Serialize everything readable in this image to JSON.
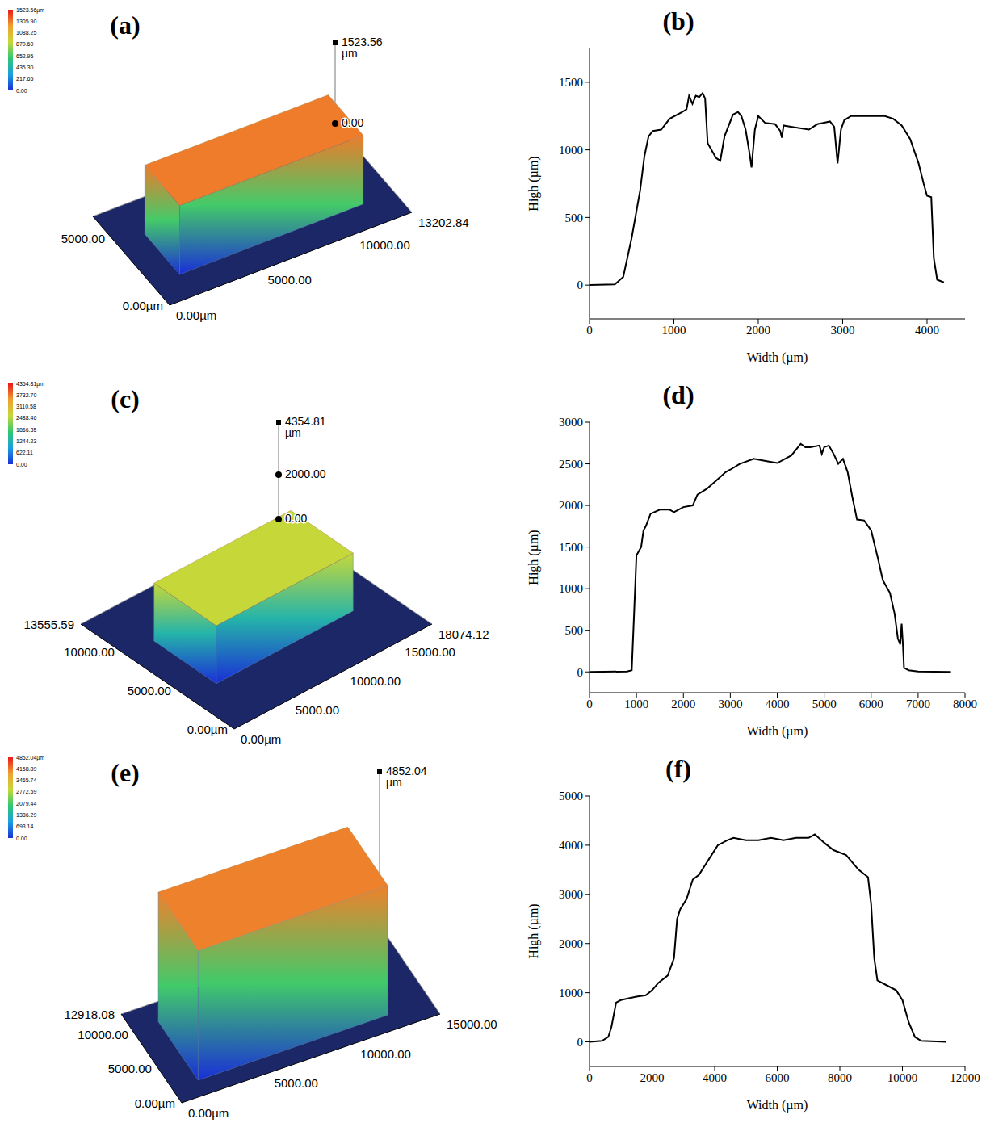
{
  "chart_data": [
    {
      "type": "surface",
      "title": "(a)",
      "xlim": [
        0,
        13202.84
      ],
      "xticks": [
        {
          "value": 0,
          "label": "0.00µm"
        },
        {
          "value": 5000,
          "label": "5000.00"
        },
        {
          "value": 10000,
          "label": "10000.00"
        },
        {
          "value": 13202.84,
          "label": "13202.84"
        }
      ],
      "ylim": [
        0,
        6600
      ],
      "yticks": [
        {
          "value": 0,
          "label": "0.00µm"
        },
        {
          "value": 5000,
          "label": "5000.00"
        }
      ],
      "zlim": [
        0,
        1523.56
      ],
      "zticks": [
        {
          "value": 0,
          "label": "0.00"
        },
        {
          "value": 1523.56,
          "label": "1523.56 µm"
        }
      ],
      "color_bar": {
        "range": [
          0,
          1523.56
        ],
        "ticks": [
          {
            "value": 1523.56,
            "label": "1523.56µm"
          },
          {
            "value": 1305.9,
            "label": "1305.90"
          },
          {
            "value": 1088.25,
            "label": "1088.25"
          },
          {
            "value": 870.6,
            "label": "870.60"
          },
          {
            "value": 652.95,
            "label": "652.95"
          },
          {
            "value": 435.3,
            "label": "435.30"
          },
          {
            "value": 217.65,
            "label": "217.65"
          },
          {
            "value": 0,
            "label": "0.00"
          }
        ]
      },
      "sample_x": [
        1500,
        11500
      ],
      "sample_y": [
        1500,
        4500
      ],
      "sample_height": 1300
    },
    {
      "type": "line",
      "title": "(b)",
      "x_label": "Width (µm)",
      "y_label": "High (µm)",
      "color": "#000000",
      "grid": false,
      "xlim": [
        0,
        4450
      ],
      "xticks": [
        0,
        1000,
        2000,
        3000,
        4000
      ],
      "ylim": [
        -250,
        1750
      ],
      "yticks": [
        0,
        500,
        1000,
        1500
      ],
      "x": [
        0,
        300,
        400,
        500,
        600,
        650,
        700,
        750,
        850,
        950,
        1100,
        1150,
        1180,
        1220,
        1260,
        1300,
        1340,
        1370,
        1400,
        1500,
        1550,
        1600,
        1700,
        1760,
        1800,
        1850,
        1900,
        1920,
        1960,
        2000,
        2080,
        2200,
        2260,
        2280,
        2300,
        2400,
        2600,
        2700,
        2850,
        2900,
        2940,
        2980,
        3020,
        3100,
        3200,
        3500,
        3600,
        3700,
        3800,
        3900,
        3960,
        4000,
        4050,
        4080,
        4120,
        4200
      ],
      "values": [
        0,
        5,
        60,
        350,
        700,
        950,
        1100,
        1140,
        1150,
        1230,
        1280,
        1300,
        1400,
        1340,
        1400,
        1390,
        1420,
        1380,
        1050,
        940,
        920,
        1100,
        1260,
        1280,
        1250,
        1150,
        960,
        870,
        1150,
        1250,
        1200,
        1190,
        1140,
        1090,
        1180,
        1170,
        1150,
        1190,
        1210,
        1170,
        900,
        1150,
        1220,
        1250,
        1250,
        1250,
        1230,
        1180,
        1080,
        900,
        750,
        660,
        650,
        200,
        40,
        20
      ]
    },
    {
      "type": "surface",
      "title": "(c)",
      "xlim": [
        0,
        18074.12
      ],
      "xticks": [
        {
          "value": 0,
          "label": "0.00µm"
        },
        {
          "value": 5000,
          "label": "5000.00"
        },
        {
          "value": 10000,
          "label": "10000.00"
        },
        {
          "value": 15000,
          "label": "15000.00"
        },
        {
          "value": 18074.12,
          "label": "18074.12"
        }
      ],
      "ylim": [
        0,
        13555.59
      ],
      "yticks": [
        {
          "value": 0,
          "label": "0.00µm"
        },
        {
          "value": 5000,
          "label": "5000.00"
        },
        {
          "value": 10000,
          "label": "10000.00"
        },
        {
          "value": 13555.59,
          "label": "13555.59"
        }
      ],
      "zlim": [
        0,
        4354.81
      ],
      "zticks": [
        {
          "value": 0,
          "label": "0.00"
        },
        {
          "value": 2000,
          "label": "2000.00"
        },
        {
          "value": 4354.81,
          "label": "4354.81 µm"
        }
      ],
      "color_bar": {
        "range": [
          0,
          4354.81
        ],
        "ticks": [
          {
            "value": 4354.81,
            "label": "4354.81µm"
          },
          {
            "value": 3732.7,
            "label": "3732.70"
          },
          {
            "value": 3110.58,
            "label": "3110.58"
          },
          {
            "value": 2488.46,
            "label": "2488.46"
          },
          {
            "value": 1866.35,
            "label": "1866.35"
          },
          {
            "value": 1244.23,
            "label": "1244.23"
          },
          {
            "value": 622.11,
            "label": "622.11"
          },
          {
            "value": 0,
            "label": "0.00"
          }
        ]
      },
      "sample_x": [
        2500,
        15000
      ],
      "sample_y": [
        4000,
        9500
      ],
      "sample_height": 2600
    },
    {
      "type": "line",
      "title": "(d)",
      "x_label": "Width (µm)",
      "y_label": "High (µm)",
      "color": "#000000",
      "grid": false,
      "xlim": [
        0,
        8000
      ],
      "xticks": [
        0,
        1000,
        2000,
        3000,
        4000,
        5000,
        6000,
        7000,
        8000
      ],
      "ylim": [
        -250,
        3000
      ],
      "yticks": [
        0,
        500,
        1000,
        1500,
        2000,
        2500,
        3000
      ],
      "x": [
        0,
        800,
        900,
        950,
        1000,
        1100,
        1150,
        1200,
        1300,
        1500,
        1700,
        1800,
        2000,
        2200,
        2300,
        2500,
        2700,
        2900,
        3000,
        3200,
        3500,
        3800,
        4000,
        4300,
        4500,
        4600,
        4700,
        4900,
        4950,
        5000,
        5100,
        5200,
        5300,
        5400,
        5500,
        5600,
        5700,
        5850,
        6000,
        6150,
        6250,
        6400,
        6500,
        6570,
        6620,
        6650,
        6680,
        6700,
        6800,
        7000,
        7700
      ],
      "values": [
        0,
        5,
        20,
        700,
        1400,
        1500,
        1700,
        1750,
        1900,
        1950,
        1950,
        1920,
        1980,
        2000,
        2130,
        2200,
        2300,
        2400,
        2430,
        2500,
        2560,
        2530,
        2510,
        2600,
        2740,
        2700,
        2700,
        2720,
        2620,
        2700,
        2720,
        2620,
        2500,
        2560,
        2400,
        2100,
        1830,
        1820,
        1700,
        1350,
        1100,
        950,
        700,
        400,
        330,
        580,
        300,
        50,
        20,
        5,
        0
      ]
    },
    {
      "type": "surface",
      "title": "(e)",
      "xlim": [
        0,
        15000
      ],
      "xticks": [
        {
          "value": 0,
          "label": "0.00µm"
        },
        {
          "value": 5000,
          "label": "5000.00"
        },
        {
          "value": 10000,
          "label": "10000.00"
        },
        {
          "value": 15000,
          "label": "15000.00"
        }
      ],
      "ylim": [
        0,
        12918.08
      ],
      "yticks": [
        {
          "value": 0,
          "label": "0.00µm"
        },
        {
          "value": 5000,
          "label": "5000.00"
        },
        {
          "value": 10000,
          "label": "10000.00"
        },
        {
          "value": 12918.08,
          "label": "12918.08"
        }
      ],
      "zlim": [
        0,
        4852.04
      ],
      "zticks": [
        {
          "value": 4852.04,
          "label": "4852.04 µm"
        }
      ],
      "color_bar": {
        "range": [
          0,
          4852.04
        ],
        "ticks": [
          {
            "value": 4852.04,
            "label": "4852.04µm"
          },
          {
            "value": 4158.89,
            "label": "4158.89"
          },
          {
            "value": 3465.74,
            "label": "3465.74"
          },
          {
            "value": 2772.59,
            "label": "2772.59"
          },
          {
            "value": 2079.44,
            "label": "2079.44"
          },
          {
            "value": 1386.29,
            "label": "1386.29"
          },
          {
            "value": 693.14,
            "label": "693.14"
          },
          {
            "value": 0,
            "label": "0.00"
          }
        ]
      },
      "sample_x": [
        1500,
        12500
      ],
      "sample_y": [
        2000,
        10500
      ],
      "sample_height": 4100
    },
    {
      "type": "line",
      "title": "(f)",
      "x_label": "Width (µm)",
      "y_label": "High (µm)",
      "color": "#000000",
      "grid": false,
      "xlim": [
        0,
        12000
      ],
      "xticks": [
        0,
        2000,
        4000,
        6000,
        8000,
        10000,
        12000
      ],
      "ylim": [
        -500,
        5000
      ],
      "yticks": [
        0,
        1000,
        2000,
        3000,
        4000,
        5000
      ],
      "x": [
        0,
        400,
        600,
        700,
        850,
        1000,
        1200,
        1500,
        1800,
        2000,
        2200,
        2500,
        2700,
        2800,
        2900,
        3100,
        3300,
        3500,
        3700,
        3900,
        4100,
        4400,
        4600,
        5000,
        5400,
        5800,
        6200,
        6600,
        7000,
        7200,
        7500,
        7800,
        8200,
        8600,
        8900,
        9000,
        9100,
        9200,
        9500,
        9800,
        10000,
        10200,
        10400,
        10600,
        11400
      ],
      "values": [
        0,
        20,
        100,
        300,
        800,
        850,
        880,
        920,
        950,
        1050,
        1200,
        1350,
        1700,
        2500,
        2700,
        2900,
        3300,
        3400,
        3600,
        3800,
        4000,
        4100,
        4150,
        4100,
        4100,
        4150,
        4100,
        4150,
        4150,
        4220,
        4050,
        3900,
        3800,
        3500,
        3350,
        2800,
        1700,
        1250,
        1150,
        1050,
        850,
        400,
        100,
        20,
        0
      ]
    }
  ]
}
